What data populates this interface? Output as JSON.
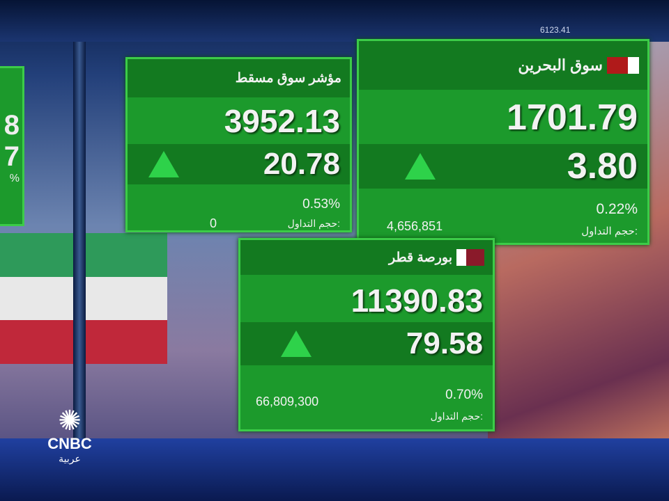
{
  "ticker_text": "6123.41",
  "partial_card": {
    "digit1": "8",
    "digit2": "7",
    "pct": "%"
  },
  "cards": [
    {
      "name": "مؤشر سوق مسقط",
      "value": "3952.13",
      "change": "20.78",
      "direction": "up",
      "percent": "0.53%",
      "volume_label": "حجم التداول:",
      "volume": "0"
    },
    {
      "name": "سوق البحرين",
      "value": "1701.79",
      "change": "3.80",
      "direction": "up",
      "percent": "0.22%",
      "volume_label": "حجم التداول:",
      "volume": "4,656,851",
      "flag": "bahrain-flag"
    },
    {
      "name": "بورصة قطر",
      "value": "11390.83",
      "change": "79.58",
      "direction": "up",
      "percent": "0.70%",
      "volume_label": "حجم التداول:",
      "volume": "66,809,300",
      "flag": "qatar-flag"
    }
  ],
  "logo": {
    "brand": "CNBC",
    "sub": "عربية"
  },
  "colors": {
    "card": "#1c9a2c",
    "border": "#3ccc48",
    "up": "#2ed24a"
  }
}
